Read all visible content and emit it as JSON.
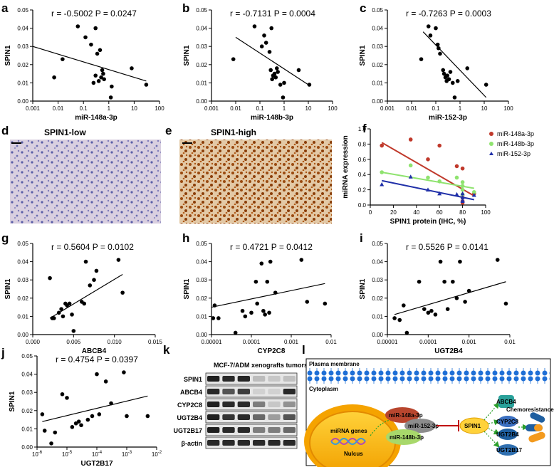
{
  "panels": {
    "a": "a",
    "b": "b",
    "c": "c",
    "d": "d",
    "e": "e",
    "f": "f",
    "g": "g",
    "h": "h",
    "i": "i",
    "j": "j",
    "k": "k",
    "l": "l"
  },
  "colors": {
    "ihc_low_bg": "#d9cfe0",
    "ihc_low_dots": "#5a5fa8",
    "ihc_high_bg": "#e3c9a6",
    "ihc_high_dots": "#9a4a10",
    "mir148a": "#c0392b",
    "mir148b": "#8fe36f",
    "mir152": "#1f2fa8"
  },
  "histology": {
    "d_title": "SPIN1-low",
    "e_title": "SPIN1-high"
  },
  "chart_data": [
    {
      "id": "a",
      "type": "scatter",
      "xscale": "log",
      "stats": "r = -0.5002    P = 0.0247",
      "ylabel": "SPIN1",
      "xlabel": "miR-148a-3p",
      "xticks": [
        "0.001",
        "0.01",
        "0.1",
        "1",
        "10",
        "100"
      ],
      "yticks": [
        "0.00",
        "0.01",
        "0.02",
        "0.03",
        "0.04",
        "0.05"
      ],
      "xlim": [
        0.001,
        100
      ],
      "ylim": [
        0,
        0.05
      ],
      "x": [
        0.007,
        0.015,
        0.06,
        0.12,
        0.2,
        0.25,
        0.3,
        0.3,
        0.35,
        0.4,
        0.45,
        0.5,
        0.55,
        0.6,
        0.65,
        1.2,
        1.3,
        8,
        30
      ],
      "y": [
        0.013,
        0.023,
        0.041,
        0.035,
        0.031,
        0.01,
        0.04,
        0.014,
        0.026,
        0.011,
        0.028,
        0.013,
        0.017,
        0.015,
        0.012,
        0.002,
        0.008,
        0.018,
        0.009
      ],
      "fit": [
        [
          0.001,
          0.03
        ],
        [
          30,
          0.011
        ]
      ]
    },
    {
      "id": "b",
      "type": "scatter",
      "xscale": "log",
      "stats": "r = -0.7131    P = 0.0004",
      "ylabel": "SPIN1",
      "xlabel": "miR-148b-3p",
      "xticks": [
        "0.001",
        "0.01",
        "0.1",
        "1",
        "10",
        "100"
      ],
      "yticks": [
        "0.00",
        "0.01",
        "0.02",
        "0.03",
        "0.04",
        "0.05"
      ],
      "xlim": [
        0.001,
        100
      ],
      "ylim": [
        0,
        0.05
      ],
      "x": [
        0.008,
        0.06,
        0.12,
        0.15,
        0.18,
        0.25,
        0.28,
        0.3,
        0.32,
        0.35,
        0.4,
        0.45,
        0.5,
        0.55,
        0.7,
        0.9,
        1.0,
        4,
        11
      ],
      "y": [
        0.023,
        0.041,
        0.03,
        0.036,
        0.032,
        0.027,
        0.017,
        0.04,
        0.012,
        0.014,
        0.015,
        0.013,
        0.018,
        0.016,
        0.009,
        0.002,
        0.01,
        0.017,
        0.009
      ],
      "fit": [
        [
          0.01,
          0.035
        ],
        [
          10,
          0.009
        ]
      ]
    },
    {
      "id": "c",
      "type": "scatter",
      "xscale": "log",
      "stats": "r = -0.7263    P = 0.0003",
      "ylabel": "SPIN1",
      "xlabel": "miR-152-3p",
      "xticks": [
        "0.001",
        "0.01",
        "0.1",
        "1",
        "10",
        "100"
      ],
      "yticks": [
        "0.00",
        "0.01",
        "0.02",
        "0.03",
        "0.04",
        "0.05"
      ],
      "xlim": [
        0.001,
        100
      ],
      "ylim": [
        0,
        0.05
      ],
      "x": [
        0.025,
        0.05,
        0.06,
        0.1,
        0.12,
        0.13,
        0.15,
        0.2,
        0.22,
        0.25,
        0.28,
        0.3,
        0.35,
        0.4,
        0.5,
        0.6,
        0.8,
        2,
        12
      ],
      "y": [
        0.023,
        0.041,
        0.036,
        0.04,
        0.031,
        0.029,
        0.026,
        0.017,
        0.015,
        0.013,
        0.011,
        0.014,
        0.012,
        0.016,
        0.01,
        0.002,
        0.011,
        0.018,
        0.009
      ],
      "fit": [
        [
          0.03,
          0.038
        ],
        [
          12,
          0.002
        ]
      ]
    },
    {
      "id": "f",
      "type": "scatter",
      "ylabel": "miRNA expression",
      "xlabel": "SPIN1 protein (IHC, %)",
      "xticks": [
        "0",
        "20",
        "40",
        "60",
        "80",
        "100"
      ],
      "yticks": [
        "0.0",
        "0.2",
        "0.4",
        "0.6",
        "0.8",
        "1.0"
      ],
      "xlim": [
        0,
        100
      ],
      "ylim": [
        0,
        1.0
      ],
      "series": [
        {
          "name": "miR-148a-3p",
          "marker": "circle",
          "x": [
            10,
            35,
            50,
            60,
            75,
            80,
            80,
            80,
            80,
            90
          ],
          "y": [
            0.78,
            0.86,
            0.6,
            0.78,
            0.51,
            0.48,
            0.1,
            0.05,
            0.03,
            0.15
          ],
          "fit": [
            [
              10,
              0.82
            ],
            [
              90,
              0.12
            ]
          ]
        },
        {
          "name": "miR-148b-3p",
          "marker": "circle",
          "x": [
            10,
            35,
            50,
            60,
            75,
            80,
            80,
            80,
            80,
            90
          ],
          "y": [
            0.43,
            0.52,
            0.36,
            0.31,
            0.36,
            0.3,
            0.14,
            0.2,
            0.25,
            0.17
          ],
          "fit": [
            [
              10,
              0.43
            ],
            [
              90,
              0.22
            ]
          ]
        },
        {
          "name": "miR-152-3p",
          "marker": "triangle",
          "x": [
            10,
            35,
            50,
            60,
            75,
            80,
            80,
            80,
            80,
            90
          ],
          "y": [
            0.27,
            0.37,
            0.2,
            0.15,
            0.14,
            0.15,
            0.1,
            0.06,
            0.05,
            0.13
          ],
          "fit": [
            [
              10,
              0.32
            ],
            [
              90,
              0.07
            ]
          ]
        }
      ]
    },
    {
      "id": "g",
      "type": "scatter",
      "stats": "r = 0.5604    P = 0.0102",
      "ylabel": "SPIN1",
      "xlabel": "ABCB4",
      "xticks": [
        "0.000",
        "0.005",
        "0.010",
        "0.015"
      ],
      "yticks": [
        "0.00",
        "0.01",
        "0.02",
        "0.03",
        "0.04",
        "0.05"
      ],
      "xlim": [
        0,
        0.015
      ],
      "ylim": [
        0,
        0.05
      ],
      "x": [
        0.0021,
        0.0024,
        0.0026,
        0.0032,
        0.0035,
        0.0037,
        0.004,
        0.0042,
        0.0045,
        0.0048,
        0.005,
        0.006,
        0.0063,
        0.0065,
        0.007,
        0.0075,
        0.0078,
        0.0105,
        0.011
      ],
      "y": [
        0.031,
        0.009,
        0.009,
        0.012,
        0.014,
        0.01,
        0.017,
        0.016,
        0.017,
        0.011,
        0.002,
        0.018,
        0.017,
        0.04,
        0.027,
        0.03,
        0.035,
        0.041,
        0.023
      ],
      "fit": [
        [
          0.0021,
          0.009
        ],
        [
          0.011,
          0.033
        ]
      ]
    },
    {
      "id": "h",
      "type": "scatter",
      "xscale": "log",
      "stats": "r = 0.4721    P = 0.0412",
      "ylabel": "SPIN1",
      "xlabel": "CYP2C8",
      "xticks": [
        "0.00001",
        "0.0001",
        "0.001",
        "0.01"
      ],
      "yticks": [
        "0.00",
        "0.01",
        "0.02",
        "0.03",
        "0.04",
        "0.05"
      ],
      "xlim": [
        1e-05,
        0.01
      ],
      "ylim": [
        0,
        0.05
      ],
      "x": [
        1.1e-05,
        1.2e-05,
        1.5e-05,
        4e-05,
        6e-05,
        7e-05,
        0.0001,
        0.00013,
        0.00014,
        0.00018,
        0.0002,
        0.00022,
        0.00025,
        0.00028,
        0.0003,
        0.0004,
        0.0018,
        0.0025,
        0.007
      ],
      "y": [
        0.009,
        0.016,
        0.009,
        0.001,
        0.013,
        0.01,
        0.012,
        0.029,
        0.017,
        0.039,
        0.013,
        0.011,
        0.029,
        0.012,
        0.04,
        0.023,
        0.041,
        0.018,
        0.017
      ],
      "fit": [
        [
          1e-05,
          0.015
        ],
        [
          0.007,
          0.028
        ]
      ]
    },
    {
      "id": "i",
      "type": "scatter",
      "xscale": "log",
      "stats": "r = 0.5526    P = 0.0141",
      "ylabel": "SPIN1",
      "xlabel": "UGT2B4",
      "xticks": [
        "0.00001",
        "0.0001",
        "0.001",
        "0.01"
      ],
      "yticks": [
        "0.00",
        "0.01",
        "0.02",
        "0.03",
        "0.04",
        "0.05"
      ],
      "xlim": [
        1e-05,
        0.01
      ],
      "ylim": [
        0,
        0.05
      ],
      "x": [
        1.5e-05,
        2e-05,
        2.5e-05,
        3e-05,
        6e-05,
        8e-05,
        0.0001,
        0.00012,
        0.00015,
        0.0002,
        0.00025,
        0.0003,
        0.0004,
        0.0005,
        0.0006,
        0.0008,
        0.001,
        0.005,
        0.008
      ],
      "y": [
        0.009,
        0.008,
        0.016,
        0.001,
        0.029,
        0.014,
        0.012,
        0.013,
        0.011,
        0.04,
        0.029,
        0.014,
        0.029,
        0.02,
        0.04,
        0.018,
        0.024,
        0.041,
        0.017
      ],
      "fit": [
        [
          1.5e-05,
          0.011
        ],
        [
          0.008,
          0.029
        ]
      ]
    },
    {
      "id": "j",
      "type": "scatter",
      "xscale": "log",
      "stats": "r = 0.4754    P = 0.0397",
      "ylabel": "SPIN1",
      "xlabel": "UGT2B17",
      "xticks": [
        "10-6",
        "10-5",
        "10-4",
        "10-3",
        "10-2"
      ],
      "yticks": [
        "0.00",
        "0.01",
        "0.02",
        "0.03",
        "0.04",
        "0.05"
      ],
      "xlim": [
        1e-06,
        0.01
      ],
      "ylim": [
        0,
        0.05
      ],
      "x": [
        1.5e-06,
        1.8e-06,
        3e-06,
        4e-06,
        7e-06,
        1e-05,
        1.5e-05,
        2e-05,
        2.5e-05,
        3e-05,
        5e-05,
        7e-05,
        0.0001,
        0.00012,
        0.0002,
        0.0003,
        0.0008,
        0.001,
        0.005
      ],
      "y": [
        0.018,
        0.009,
        0.002,
        0.008,
        0.029,
        0.027,
        0.011,
        0.013,
        0.014,
        0.012,
        0.015,
        0.017,
        0.04,
        0.018,
        0.036,
        0.024,
        0.041,
        0.017,
        0.017
      ],
      "fit": [
        [
          1.5e-06,
          0.014
        ],
        [
          0.005,
          0.028
        ]
      ]
    },
    {
      "id": "k",
      "type": "western-blot",
      "title": "MCF-7/ADM xenografts tumors",
      "rows": [
        "SPIN1",
        "ABCB4",
        "CYP2C8",
        "UGT2B4",
        "UGT2B17",
        "β-actin"
      ],
      "intensity": [
        [
          0.95,
          0.9,
          0.92,
          0.2,
          0.15,
          0.18
        ],
        [
          0.9,
          0.7,
          0.8,
          0.1,
          0.1,
          0.9
        ],
        [
          0.95,
          0.9,
          0.9,
          0.5,
          0.15,
          0.4
        ],
        [
          0.95,
          0.85,
          0.9,
          0.6,
          0.35,
          0.7
        ],
        [
          0.95,
          0.9,
          0.9,
          0.5,
          0.5,
          0.6
        ],
        [
          0.9,
          0.9,
          0.9,
          0.9,
          0.9,
          0.9
        ]
      ]
    }
  ],
  "schematic": {
    "plasma_membrane": "Plasma membrane",
    "cytoplasm": "Cytoplasm",
    "mir148a": "miR-148a-3p",
    "mir152": "miR-152-3p",
    "mir148b": "miR-148b-3p",
    "mirna_genes": "miRNA genes",
    "nucleus": "Nulcus",
    "spin1": "SPIN1",
    "abcb4": "ABCB4",
    "cyp2c8": "CYP2C8",
    "ugt2b4": "UGT2B4",
    "ugt2b17": "UGT2B17",
    "chemoresistance": "Chemoresistance"
  }
}
